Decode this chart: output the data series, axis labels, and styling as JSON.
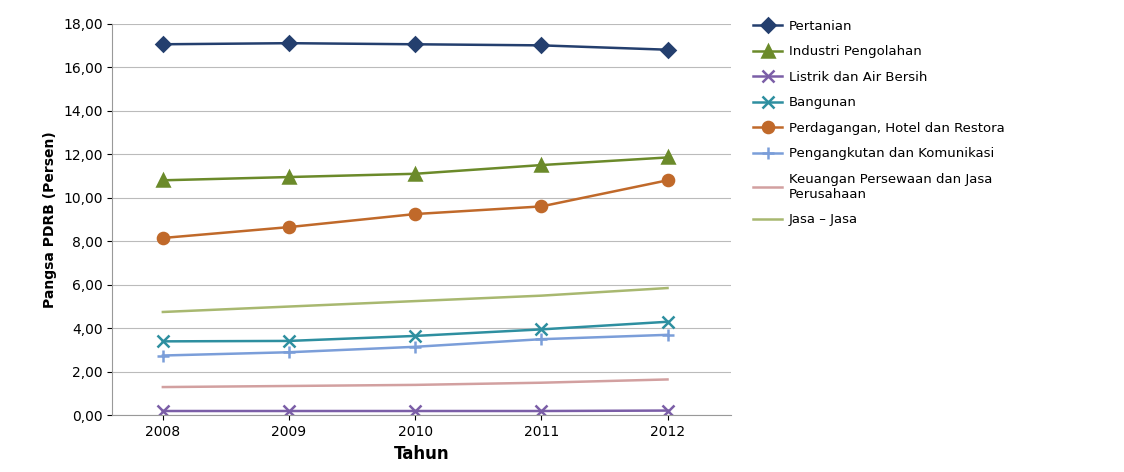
{
  "years": [
    2008,
    2009,
    2010,
    2011,
    2012
  ],
  "series": [
    {
      "name": "Pertanian",
      "values": [
        17.05,
        17.1,
        17.05,
        17.0,
        16.8
      ],
      "color": "#243F6E",
      "marker": "D",
      "markersize": 7,
      "linewidth": 1.8
    },
    {
      "name": "Industri Pengolahan",
      "values": [
        10.8,
        10.95,
        11.1,
        11.5,
        11.85
      ],
      "color": "#6B8A2A",
      "marker": "^",
      "markersize": 8,
      "linewidth": 1.8
    },
    {
      "name": "Listrik dan Air Bersih",
      "values": [
        0.2,
        0.2,
        0.2,
        0.2,
        0.22
      ],
      "color": "#7B5EA7",
      "marker": "x",
      "markersize": 9,
      "linewidth": 1.8
    },
    {
      "name": "Bangunan",
      "values": [
        3.4,
        3.42,
        3.65,
        3.95,
        4.3
      ],
      "color": "#2E8FA0",
      "marker": "x",
      "markersize": 9,
      "linewidth": 1.8
    },
    {
      "name": "Perdagangan, Hotel dan Restora",
      "values": [
        8.15,
        8.65,
        9.25,
        9.6,
        10.8
      ],
      "color": "#C0692A",
      "marker": "o",
      "markersize": 8,
      "linewidth": 1.8
    },
    {
      "name": "Pengangkutan dan Komunikasi",
      "values": [
        2.75,
        2.9,
        3.15,
        3.5,
        3.7
      ],
      "color": "#7B9ED9",
      "marker": "+",
      "markersize": 9,
      "linewidth": 1.8
    },
    {
      "name": "Keuangan Persewaan dan Jasa\nPerusahaan",
      "values": [
        1.3,
        1.35,
        1.4,
        1.5,
        1.65
      ],
      "color": "#D2A0A0",
      "marker": null,
      "markersize": 0,
      "linewidth": 1.8
    },
    {
      "name": "Jasa – Jasa",
      "values": [
        4.75,
        5.0,
        5.25,
        5.5,
        5.85
      ],
      "color": "#A8B870",
      "marker": null,
      "markersize": 0,
      "linewidth": 1.8
    }
  ],
  "xlabel": "Tahun",
  "ylabel": "Pangsa PDRB (Persen)",
  "ylim": [
    0.0,
    18.0
  ],
  "yticks": [
    0.0,
    2.0,
    4.0,
    6.0,
    8.0,
    10.0,
    12.0,
    14.0,
    16.0,
    18.0
  ],
  "ytick_labels": [
    "0,00",
    "2,00",
    "4,00",
    "6,00",
    "8,00",
    "10,00",
    "12,00",
    "14,00",
    "16,00",
    "18,00"
  ],
  "xticks": [
    2008,
    2009,
    2010,
    2011,
    2012
  ],
  "background_color": "#ffffff",
  "grid_color": "#bbbbbb",
  "figsize": [
    11.24,
    4.72
  ],
  "dpi": 100
}
